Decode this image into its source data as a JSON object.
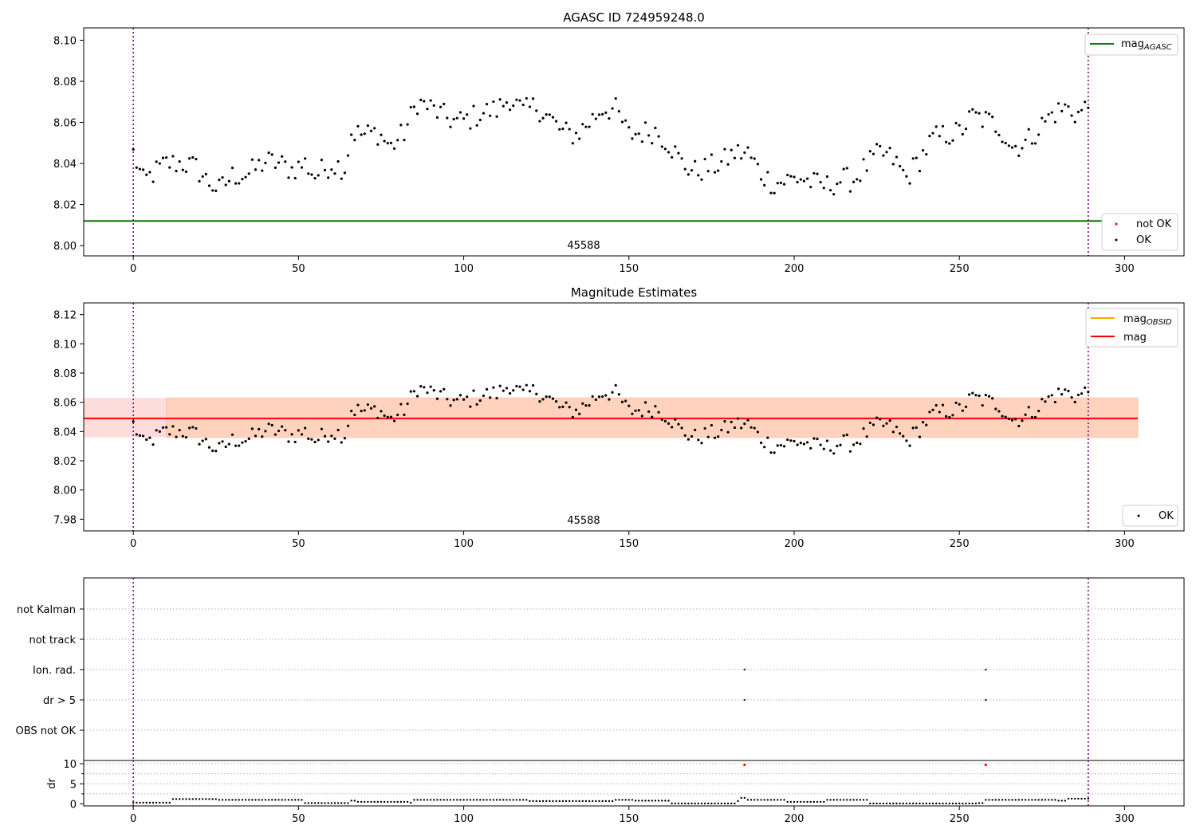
{
  "chart_data": [
    {
      "type": "scatter",
      "title": "AGASC ID 724959248.0",
      "annotation": "45588",
      "xlim": [
        -15,
        318
      ],
      "ylim": [
        7.995,
        8.106
      ],
      "xticks": [
        0,
        50,
        100,
        150,
        200,
        250,
        300
      ],
      "yticks": [
        8.0,
        8.02,
        8.04,
        8.06,
        8.08,
        8.1
      ],
      "vlines": [
        0,
        289
      ],
      "hline": {
        "label": "mag",
        "sub": "AGASC",
        "value": 8.012,
        "color": "#008000"
      },
      "legend_lines": [
        {
          "label": "mag",
          "sub": "AGASC",
          "color": "#008000"
        }
      ],
      "legend_points": [
        {
          "label": "not OK",
          "color": "#ff0000"
        },
        {
          "label": "OK",
          "color": "#000000"
        }
      ],
      "x_max": 289,
      "y_anchors": [
        [
          0,
          8.045
        ],
        [
          3,
          8.031
        ],
        [
          6,
          8.035
        ],
        [
          10,
          8.04
        ],
        [
          15,
          8.04
        ],
        [
          19,
          8.038
        ],
        [
          22,
          8.032
        ],
        [
          26,
          8.027
        ],
        [
          30,
          8.034
        ],
        [
          35,
          8.035
        ],
        [
          40,
          8.041
        ],
        [
          44,
          8.04
        ],
        [
          48,
          8.037
        ],
        [
          52,
          8.04
        ],
        [
          55,
          8.034
        ],
        [
          60,
          8.04
        ],
        [
          64,
          8.038
        ],
        [
          66,
          8.055
        ],
        [
          70,
          8.054
        ],
        [
          74,
          8.055
        ],
        [
          78,
          8.048
        ],
        [
          82,
          8.055
        ],
        [
          86,
          8.07
        ],
        [
          90,
          8.067
        ],
        [
          94,
          8.063
        ],
        [
          98,
          8.06
        ],
        [
          102,
          8.062
        ],
        [
          106,
          8.065
        ],
        [
          110,
          8.066
        ],
        [
          114,
          8.072
        ],
        [
          118,
          8.065
        ],
        [
          122,
          8.068
        ],
        [
          126,
          8.062
        ],
        [
          130,
          8.055
        ],
        [
          134,
          8.054
        ],
        [
          138,
          8.06
        ],
        [
          142,
          8.067
        ],
        [
          146,
          8.066
        ],
        [
          150,
          8.054
        ],
        [
          154,
          8.055
        ],
        [
          158,
          8.056
        ],
        [
          162,
          8.05
        ],
        [
          166,
          8.04
        ],
        [
          170,
          8.036
        ],
        [
          174,
          8.038
        ],
        [
          178,
          8.04
        ],
        [
          182,
          8.045
        ],
        [
          186,
          8.045
        ],
        [
          190,
          8.035
        ],
        [
          194,
          8.03
        ],
        [
          198,
          8.032
        ],
        [
          202,
          8.033
        ],
        [
          206,
          8.03
        ],
        [
          210,
          8.029
        ],
        [
          214,
          8.032
        ],
        [
          218,
          8.032
        ],
        [
          222,
          8.039
        ],
        [
          226,
          8.045
        ],
        [
          230,
          8.042
        ],
        [
          234,
          8.033
        ],
        [
          238,
          8.042
        ],
        [
          242,
          8.052
        ],
        [
          246,
          8.054
        ],
        [
          250,
          8.055
        ],
        [
          254,
          8.063
        ],
        [
          258,
          8.061
        ],
        [
          262,
          8.058
        ],
        [
          266,
          8.048
        ],
        [
          270,
          8.05
        ],
        [
          274,
          8.057
        ],
        [
          278,
          8.064
        ],
        [
          282,
          8.067
        ],
        [
          286,
          8.064
        ],
        [
          289,
          8.068
        ]
      ]
    },
    {
      "type": "scatter",
      "title": "Magnitude Estimates",
      "annotation": "45588",
      "xlim": [
        -15,
        318
      ],
      "ylim": [
        7.972,
        8.128
      ],
      "xticks": [
        0,
        50,
        100,
        150,
        200,
        250,
        300
      ],
      "yticks": [
        7.98,
        8.0,
        8.02,
        8.04,
        8.06,
        8.08,
        8.1,
        8.12
      ],
      "vlines": [
        0,
        289
      ],
      "band": {
        "y": [
          8.036,
          8.063
        ],
        "x": [
          -15,
          304
        ],
        "color": "#ffdcdc",
        "overlay": {
          "x": [
            10,
            304
          ],
          "color": "#ffd2bd"
        }
      },
      "hline": {
        "label": "mag",
        "value": 8.049,
        "color": "#ff0000"
      },
      "legend_lines": [
        {
          "label": "mag",
          "sub": "OBSID",
          "color": "#ffa500"
        },
        {
          "label": "mag",
          "color": "#ff0000"
        }
      ],
      "legend_points": [
        {
          "label": "OK",
          "color": "#000000"
        }
      ],
      "x_max": 289,
      "y_anchors": "same as panel 1"
    },
    {
      "type": "scatter",
      "categories": [
        "not Kalman",
        "not track",
        "Ion. rad.",
        "dr > 5",
        "OBS not OK"
      ],
      "xlim": [
        -15,
        318
      ],
      "vlines": [
        0,
        289
      ],
      "flag_points": [
        {
          "flag": "Ion. rad.",
          "x": [
            185,
            258
          ]
        },
        {
          "flag": "dr > 5",
          "x": [
            185,
            258
          ]
        }
      ]
    },
    {
      "type": "scatter",
      "ylabel": "dr",
      "xlim": [
        -15,
        318
      ],
      "ylim": [
        -0.5,
        10.8
      ],
      "yticks": [
        0,
        5,
        10
      ],
      "xticks": [
        0,
        50,
        100,
        150,
        200,
        250,
        300
      ],
      "vlines": [
        0,
        289
      ],
      "gridlines_y": [
        2.5,
        5,
        7.5,
        10
      ],
      "dr_segments": [
        [
          0,
          0.3
        ],
        [
          12,
          1.2
        ],
        [
          26,
          1.0
        ],
        [
          42,
          1.0
        ],
        [
          51,
          1.0
        ],
        [
          52,
          0.2
        ],
        [
          66,
          0.8
        ],
        [
          68,
          0.5
        ],
        [
          84,
          0.3
        ],
        [
          85,
          1.0
        ],
        [
          120,
          0.7
        ],
        [
          146,
          1.0
        ],
        [
          152,
          0.8
        ],
        [
          163,
          0.1
        ],
        [
          183,
          0.7
        ],
        [
          184,
          1.5
        ],
        [
          186,
          1.0
        ],
        [
          198,
          0.5
        ],
        [
          210,
          1.0
        ],
        [
          222,
          1.0
        ],
        [
          223,
          0.1
        ],
        [
          256,
          0.2
        ],
        [
          258,
          1.0
        ],
        [
          280,
          0.8
        ],
        [
          283,
          1.3
        ],
        [
          289,
          1.3
        ]
      ],
      "outliers": [
        {
          "x": 185,
          "y": 9.7,
          "color": "#ff0000"
        },
        {
          "x": 258,
          "y": 9.7,
          "color": "#ff0000"
        }
      ]
    }
  ]
}
